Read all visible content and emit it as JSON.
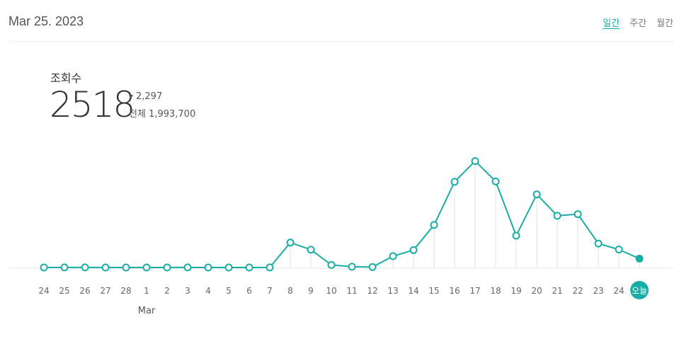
{
  "header": {
    "date": "Mar 25. 2023",
    "periods": [
      {
        "label": "일간",
        "active": true
      },
      {
        "label": "주간",
        "active": false
      },
      {
        "label": "월간",
        "active": false
      }
    ]
  },
  "stats": {
    "label": "조회수",
    "value": "2518",
    "change": "2,297",
    "change_direction": "down",
    "total": "전체 1,993,700"
  },
  "chart_data": {
    "type": "line",
    "x": [
      "24",
      "25",
      "26",
      "27",
      "28",
      "1",
      "2",
      "3",
      "4",
      "5",
      "6",
      "7",
      "8",
      "9",
      "10",
      "11",
      "12",
      "13",
      "14",
      "15",
      "16",
      "17",
      "18",
      "19",
      "20",
      "21",
      "22",
      "23",
      "24",
      "오늘"
    ],
    "month_label": "Mar",
    "series": [
      {
        "values": [
          0,
          50,
          50,
          0,
          0,
          0,
          0,
          50,
          0,
          0,
          0,
          50,
          15400,
          11000,
          1600,
          500,
          300,
          7000,
          10800,
          26300,
          53000,
          65800,
          53200,
          19700,
          45200,
          32000,
          33000,
          14800,
          11100,
          5500
        ]
      }
    ],
    "ylim": [
      0,
      70000
    ],
    "grid": false,
    "accent_color": "#1aada5",
    "highlight_last": true
  }
}
